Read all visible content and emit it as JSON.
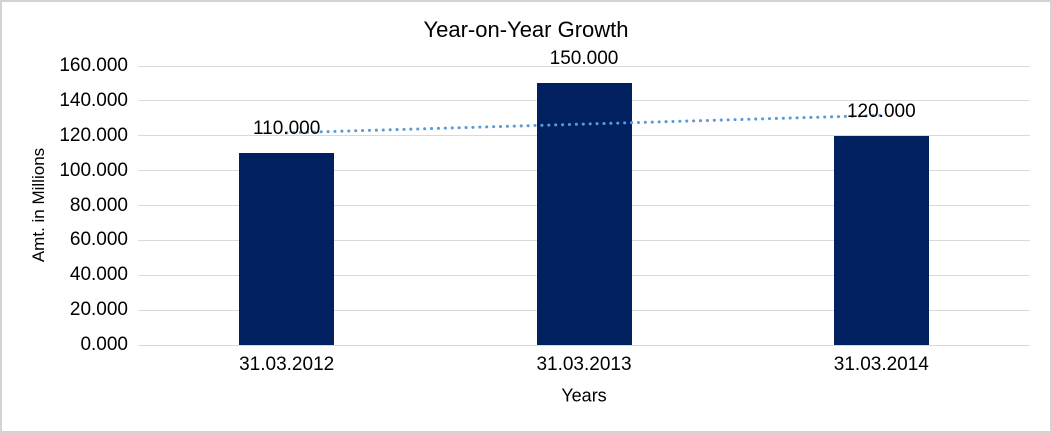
{
  "frame": {
    "background": "#ffffff",
    "border_color": "#d3d3d3"
  },
  "chart_data": {
    "type": "bar",
    "title": "Year-on-Year Growth",
    "xlabel": "Years",
    "ylabel": "Amt. in Millions",
    "categories": [
      "31.03.2012",
      "31.03.2013",
      "31.03.2014"
    ],
    "values": [
      110,
      150,
      120
    ],
    "value_labels": [
      "110.000",
      "150.000",
      "120.000"
    ],
    "ylim": [
      0,
      160
    ],
    "ytick_step": 20,
    "ytick_labels": [
      "0.000",
      "20.000",
      "40.000",
      "60.000",
      "80.000",
      "100.000",
      "120.000",
      "140.000",
      "160.000"
    ],
    "grid": true,
    "legend": false,
    "bar_color": "#002060",
    "gridline_color": "#d9d9d9",
    "text_color": "#000000",
    "trendline": {
      "style": "dotted",
      "color": "#5b9bd5",
      "start_value": 121.7,
      "end_value": 131.7
    }
  }
}
